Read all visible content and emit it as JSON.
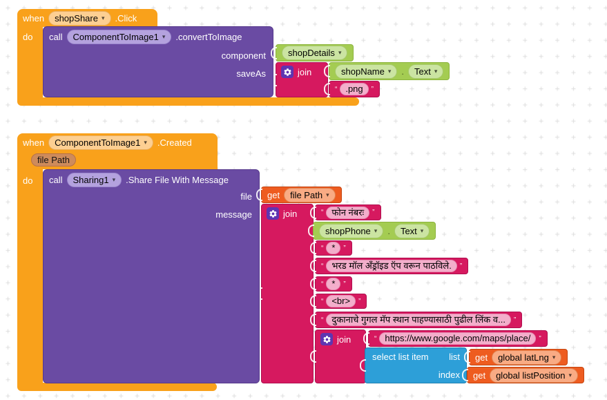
{
  "ui": {
    "dropdown": "▾",
    "open_quote": "“",
    "close_quote": "”"
  },
  "colors": {
    "event_orange": "#F9A11B",
    "method_purple": "#6A4BA3",
    "getter_green": "#A4CC52",
    "text_magenta": "#D6195F",
    "variable_orange": "#EE5C20",
    "list_blue": "#2D9FD8",
    "gear_badge_purple": "#5E35B1",
    "text_field_pink": "#F3AECB"
  },
  "g1": {
    "when_label": "when",
    "event_component": "shopShare",
    "event_name": ".Click",
    "do_label": "do",
    "call_label": "call",
    "method_component": "ComponentToImage1",
    "method_name": ".convertToImage",
    "param_component": "component",
    "param_saveas": "saveAs",
    "arg_component": "shopDetails",
    "join_label": "join",
    "shop_name": "shopName",
    "dot": ".",
    "prop_text": "Text",
    "png": ".png"
  },
  "g2": {
    "when_label": "when",
    "event_component": "ComponentToImage1",
    "event_name": ".Created",
    "param_chip": "file Path",
    "do_label": "do",
    "call_label": "call",
    "method_component": "Sharing1",
    "method_name": ".Share File With Message",
    "param_file": "file",
    "param_message": "message",
    "get_label": "get",
    "file_var": "file Path",
    "join_label": "join",
    "args": {
      "phone_label": "फोन नंबरः",
      "shop_phone": "shopPhone",
      "dot": ".",
      "prop_text": "Text",
      "star1": "*",
      "sent_via": "भरड मॉल अँड्रॉइड ऍप वरून पाठविले.",
      "star2": "*",
      "br_tag": "<br>",
      "map_info": "दुकानाचे गुगल मॅप स्थान पाहण्यासाठी पुढील लिंक व...",
      "inner_join_label": "join",
      "maps_url": "https://www.google.com/maps/place/",
      "select_label": "select list item",
      "list_label": "list",
      "index_label": "index",
      "get1_label": "get",
      "latlng_var": "global latLng",
      "get2_label": "get",
      "listpos_var": "global listPosition"
    }
  }
}
